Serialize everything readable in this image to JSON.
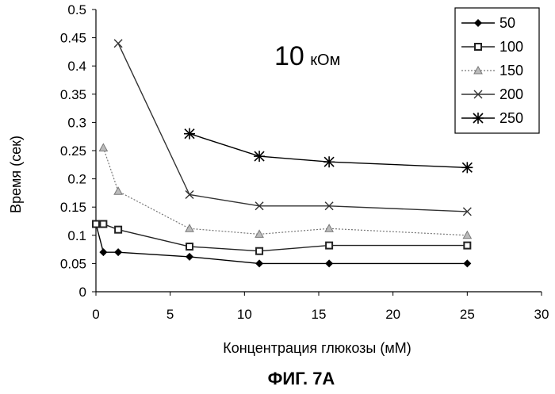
{
  "chart_data": {
    "type": "line",
    "title": "",
    "xlabel": "Концентрация глюкозы (мМ)",
    "ylabel": "Время (сек)",
    "annotation": {
      "value": "10",
      "unit": "кОм"
    },
    "caption": "ФИГ. 7А",
    "xlim": [
      0,
      30
    ],
    "ylim": [
      0,
      0.5
    ],
    "x_ticks": [
      "0",
      "5",
      "10",
      "15",
      "20",
      "25",
      "30"
    ],
    "y_ticks": [
      "0",
      "0.05",
      "0.1",
      "0.15",
      "0.2",
      "0.25",
      "0.3",
      "0.35",
      "0.4",
      "0.45",
      "0.5"
    ],
    "grid": false,
    "legend_position": "top-right",
    "series": [
      {
        "name": "50",
        "marker": "diamond",
        "line": "solid",
        "color": "#000000",
        "x": [
          0,
          0.5,
          1.5,
          6.3,
          11,
          15.7,
          25
        ],
        "y": [
          0.12,
          0.07,
          0.07,
          0.062,
          0.05,
          0.05,
          0.05
        ]
      },
      {
        "name": "100",
        "marker": "square",
        "line": "solid",
        "color": "#222222",
        "x": [
          0,
          0.5,
          1.5,
          6.3,
          11,
          15.7,
          25
        ],
        "y": [
          0.12,
          0.12,
          0.11,
          0.08,
          0.072,
          0.082,
          0.082
        ]
      },
      {
        "name": "150",
        "marker": "triangle",
        "line": "dotted",
        "color": "#777777",
        "x": [
          0.5,
          1.5,
          6.3,
          11,
          15.7,
          25
        ],
        "y": [
          0.255,
          0.178,
          0.112,
          0.102,
          0.112,
          0.1
        ]
      },
      {
        "name": "200",
        "marker": "x",
        "line": "solid",
        "color": "#333333",
        "x": [
          1.5,
          6.3,
          11,
          15.7,
          25
        ],
        "y": [
          0.44,
          0.172,
          0.152,
          0.152,
          0.142
        ]
      },
      {
        "name": "250",
        "marker": "star",
        "line": "solid",
        "color": "#000000",
        "x": [
          6.3,
          11,
          15.7,
          25
        ],
        "y": [
          0.28,
          0.24,
          0.23,
          0.22
        ]
      }
    ]
  }
}
